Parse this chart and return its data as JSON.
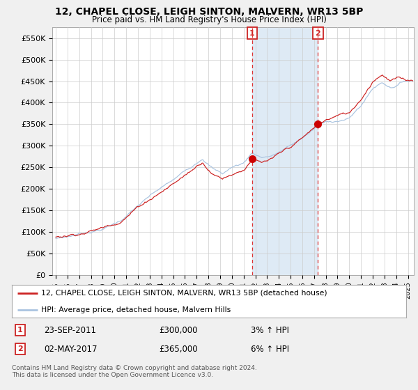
{
  "title": "12, CHAPEL CLOSE, LEIGH SINTON, MALVERN, WR13 5BP",
  "subtitle": "Price paid vs. HM Land Registry's House Price Index (HPI)",
  "ylabel_ticks": [
    "£0",
    "£50K",
    "£100K",
    "£150K",
    "£200K",
    "£250K",
    "£300K",
    "£350K",
    "£400K",
    "£450K",
    "£500K",
    "£550K"
  ],
  "ytick_values": [
    0,
    50000,
    100000,
    150000,
    200000,
    250000,
    300000,
    350000,
    400000,
    450000,
    500000,
    550000
  ],
  "ylim": [
    0,
    575000
  ],
  "xlim_start": 1994.7,
  "xlim_end": 2025.5,
  "hpi_color": "#aac4e0",
  "price_color": "#cc2222",
  "dot_color": "#cc0000",
  "shade_color": "#deeaf5",
  "background_color": "#f5f5f5",
  "grid_color": "#cccccc",
  "transaction1_date": 2011.73,
  "transaction1_price": 300000,
  "transaction1_label": "1",
  "transaction2_date": 2017.33,
  "transaction2_price": 365000,
  "transaction2_label": "2",
  "legend_line1": "12, CHAPEL CLOSE, LEIGH SINTON, MALVERN, WR13 5BP (detached house)",
  "legend_line2": "HPI: Average price, detached house, Malvern Hills",
  "table_row1": [
    "1",
    "23-SEP-2011",
    "£300,000",
    "3% ↑ HPI"
  ],
  "table_row2": [
    "2",
    "02-MAY-2017",
    "£365,000",
    "6% ↑ HPI"
  ],
  "footer": "Contains HM Land Registry data © Crown copyright and database right 2024.\nThis data is licensed under the Open Government Licence v3.0.",
  "xtick_years": [
    1995,
    1996,
    1997,
    1998,
    1999,
    2000,
    2001,
    2002,
    2003,
    2004,
    2005,
    2006,
    2007,
    2008,
    2009,
    2010,
    2011,
    2012,
    2013,
    2014,
    2015,
    2016,
    2017,
    2018,
    2019,
    2020,
    2021,
    2022,
    2023,
    2024,
    2025
  ]
}
